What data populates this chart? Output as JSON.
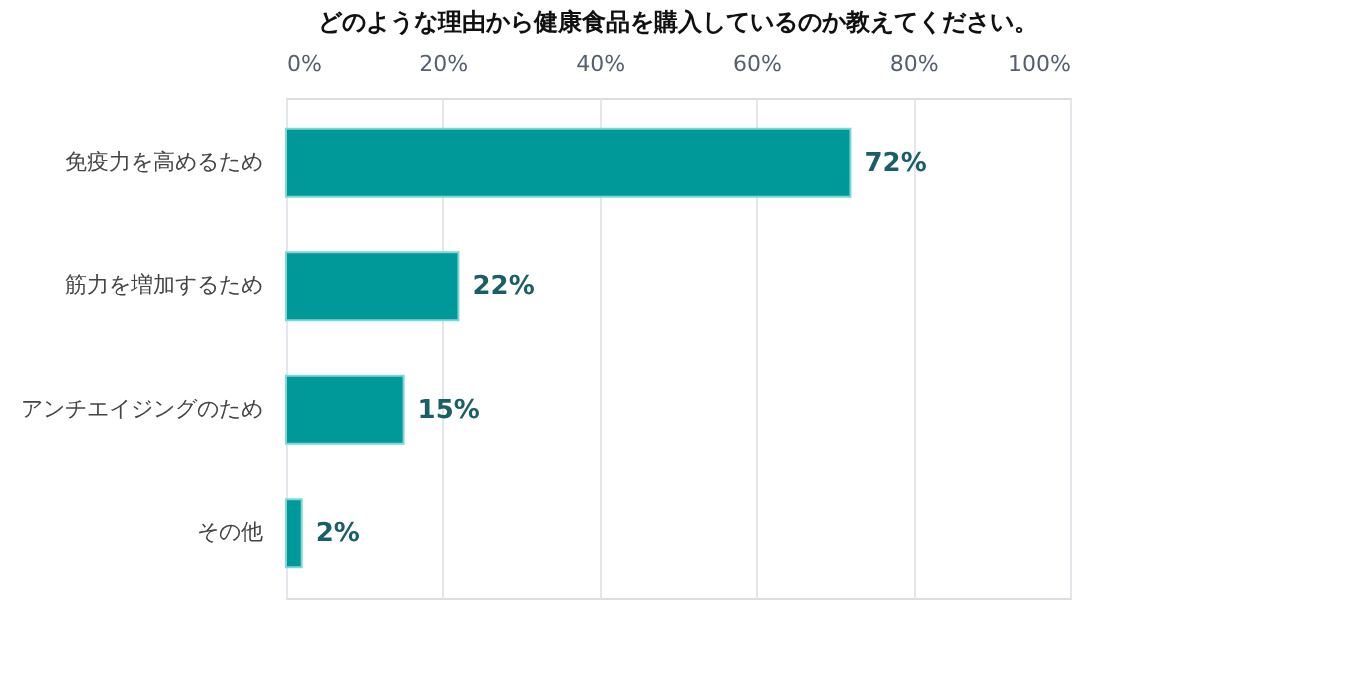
{
  "chart_data": {
    "type": "bar",
    "orientation": "horizontal",
    "title": "どのような理由から健康食品を購入しているのか教えてください。",
    "categories": [
      "免疫力を高めるため",
      "筋力を増加するため",
      "アンチエイジングのため",
      "その他"
    ],
    "values": [
      72,
      22,
      15,
      2
    ],
    "value_labels": [
      "72%",
      "22%",
      "15%",
      "2%"
    ],
    "color": "#009999",
    "xlim": [
      0,
      100
    ],
    "xticks": [
      {
        "value": 0,
        "label": "0%"
      },
      {
        "value": 20,
        "label": "20%"
      },
      {
        "value": 40,
        "label": "40%"
      },
      {
        "value": 60,
        "label": "60%"
      },
      {
        "value": 80,
        "label": "80%"
      },
      {
        "value": 100,
        "label": "100%"
      }
    ],
    "grid": "x"
  }
}
